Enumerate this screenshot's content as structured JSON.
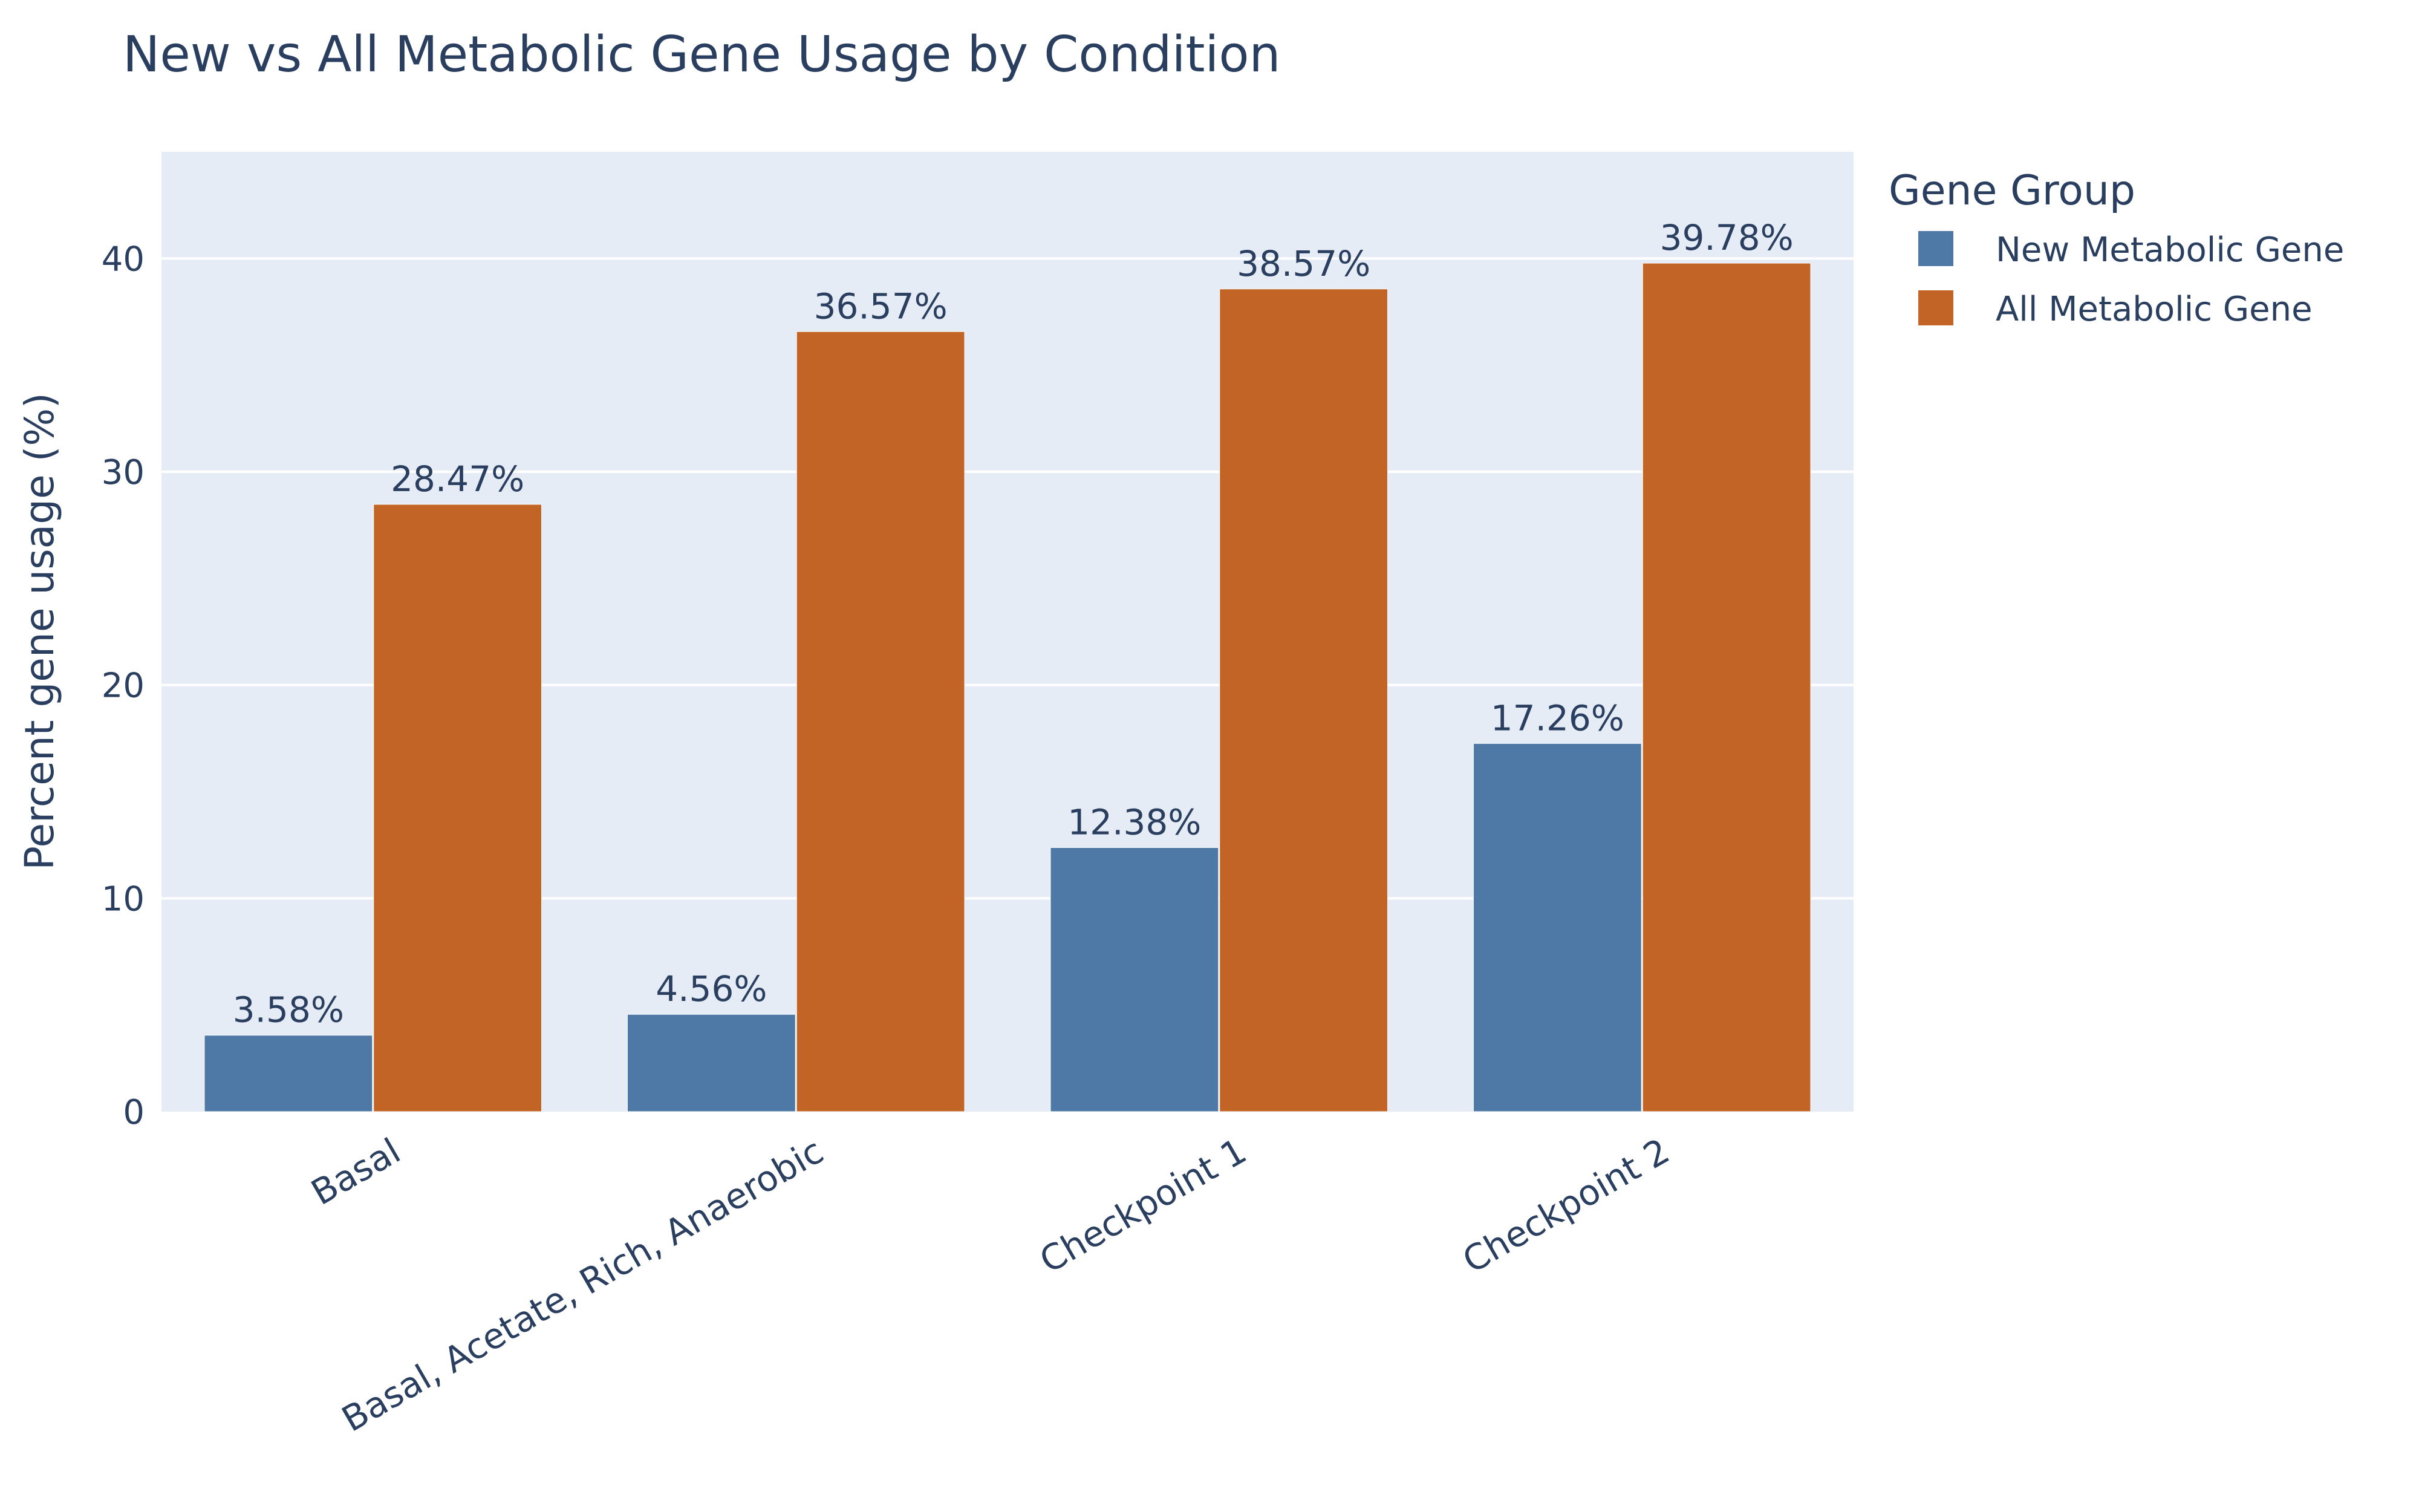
{
  "chart_data": {
    "type": "bar",
    "title": "New vs All Metabolic Gene Usage by Condition",
    "xlabel": "",
    "ylabel": "Percent gene usage (%)",
    "categories": [
      "Basal",
      "Basal, Acetate, Rich, Anaerobic",
      "Checkpoint 1",
      "Checkpoint 2"
    ],
    "series": [
      {
        "name": "New Metabolic Gene",
        "color": "#4e79a7",
        "values": [
          3.58,
          4.56,
          12.38,
          17.26
        ],
        "labels": [
          "3.58%",
          "4.56%",
          "12.38%",
          "17.26%"
        ]
      },
      {
        "name": "All Metabolic Gene",
        "color": "#c26426",
        "values": [
          28.47,
          36.57,
          38.57,
          39.78
        ],
        "labels": [
          "28.47%",
          "36.57%",
          "38.57%",
          "39.78%"
        ]
      }
    ],
    "ylim": [
      0,
      45
    ],
    "yticks": [
      0,
      10,
      20,
      30,
      40
    ],
    "ytick_labels": [
      "0",
      "10",
      "20",
      "30",
      "40"
    ],
    "legend_title": "Gene Group",
    "legend_position": "right",
    "grid": true,
    "plot_background": "#e5ecf6",
    "text_color": "#2a3f5f"
  }
}
